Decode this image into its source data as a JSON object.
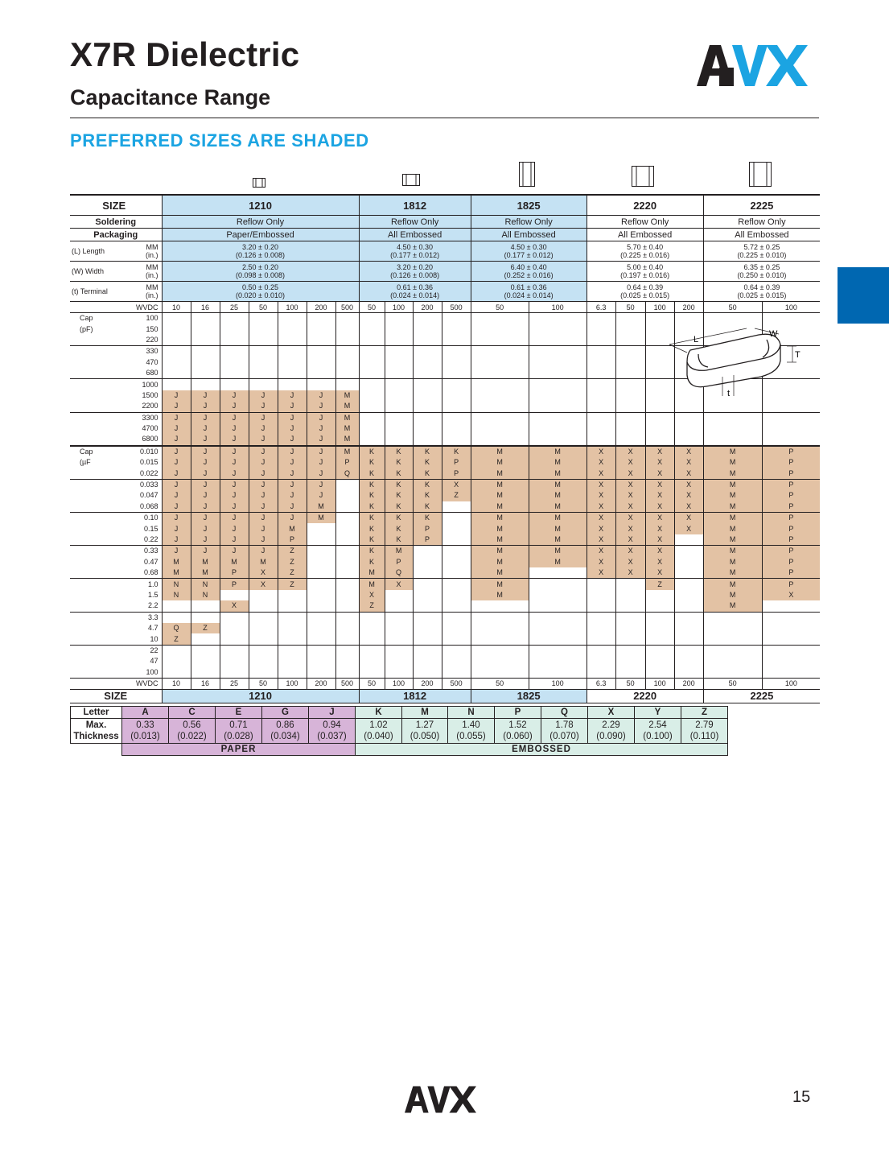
{
  "header": {
    "title": "X7R Dielectric",
    "subtitle": "Capacitance Range",
    "preferred_note": "PREFERRED SIZES ARE SHADED",
    "logo_text": "AVX",
    "accent_color": "#1ba4e2",
    "tab_color": "#0067b1"
  },
  "labels": {
    "size": "SIZE",
    "soldering": "Soldering",
    "packaging": "Packaging",
    "length": "(L)  Length",
    "width": "(W)  Width",
    "terminal": "(t)    Terminal",
    "mm": "MM",
    "in": "(in.)",
    "wvdc": "WVDC",
    "cap": "Cap",
    "pf": "(pF)",
    "uf": "(µF",
    "diag_L": "L",
    "diag_W": "W",
    "diag_T": "T",
    "diag_t": "t"
  },
  "sizes": [
    {
      "name": "1210",
      "soldering": "Reflow Only",
      "packaging": "Paper/Embossed",
      "length_mm": "3.20 ± 0.20",
      "length_in": "(0.126 ± 0.008)",
      "width_mm": "2.50 ± 0.20",
      "width_in": "(0.098 ± 0.008)",
      "term_mm": "0.50 ± 0.25",
      "term_in": "(0.020 ± 0.010)",
      "wvdc": [
        "10",
        "16",
        "25",
        "50",
        "100",
        "200",
        "500"
      ]
    },
    {
      "name": "1812",
      "soldering": "Reflow Only",
      "packaging": "All Embossed",
      "length_mm": "4.50 ± 0.30",
      "length_in": "(0.177 ± 0.012)",
      "width_mm": "3.20 ± 0.20",
      "width_in": "(0.126 ± 0.008)",
      "term_mm": "0.61 ± 0.36",
      "term_in": "(0.024 ± 0.014)",
      "wvdc": [
        "50",
        "100",
        "200",
        "500"
      ]
    },
    {
      "name": "1825",
      "soldering": "Reflow Only",
      "packaging": "All Embossed",
      "length_mm": "4.50 ± 0.30",
      "length_in": "(0.177 ± 0.012)",
      "width_mm": "6.40 ± 0.40",
      "width_in": "(0.252 ± 0.016)",
      "term_mm": "0.61 ± 0.36",
      "term_in": "(0.024 ± 0.014)",
      "wvdc": [
        "50",
        "100"
      ]
    },
    {
      "name": "2220",
      "soldering": "Reflow Only",
      "packaging": "All Embossed",
      "length_mm": "5.70 ± 0.40",
      "length_in": "(0.225 ± 0.016)",
      "width_mm": "5.00 ± 0.40",
      "width_in": "(0.197 ± 0.016)",
      "term_mm": "0.64 ± 0.39",
      "term_in": "(0.025 ± 0.015)",
      "wvdc": [
        "6.3",
        "50",
        "100",
        "200"
      ]
    },
    {
      "name": "2225",
      "soldering": "Reflow Only",
      "packaging": "All Embossed",
      "length_mm": "5.72 ± 0.25",
      "length_in": "(0.225 ± 0.010)",
      "width_mm": "6.35 ± 0.25",
      "width_in": "(0.250 ± 0.010)",
      "term_mm": "0.64 ± 0.39",
      "term_in": "(0.025 ± 0.015)",
      "wvdc": [
        "50",
        "100"
      ]
    }
  ],
  "cap_values": [
    "100",
    "150",
    "220",
    "330",
    "470",
    "680",
    "1000",
    "1500",
    "2200",
    "3300",
    "4700",
    "6800",
    "0.010",
    "0.015",
    "0.022",
    "0.033",
    "0.047",
    "0.068",
    "0.10",
    "0.15",
    "0.22",
    "0.33",
    "0.47",
    "0.68",
    "1.0",
    "1.5",
    "2.2",
    "3.3",
    "4.7",
    "10",
    "22",
    "47",
    "100"
  ],
  "cell_rows": [
    "",
    "",
    "",
    "",
    "",
    "",
    "",
    "JJJJJJM",
    "JJJJJJM",
    "JJJJJJM",
    "JJJJJJM",
    "JJJJJJM",
    "JJJJJJMKKKKMMXXXXMP",
    "JJJJJJPKKKPMMXXXXMP",
    "JJJJJJQKKKPMMXXXXMP",
    "JJJJJJ_KKKXMMXXXXMP",
    "JJJJJJ_KKKZMMXXXXMP",
    "JJJJJM_KKK_MMXXXXMP",
    "JJJJJM_KKK_MMXXXXMP",
    "JJJJM__KKP_MMXXXXMP",
    "JJJJP__KKP_MMXXX_MP",
    "JJJJZ__KM__MMXXX_MP",
    "MMMMZ__KP__MMXXX_MP",
    "MMPXZ__MQ__M_XXX_MP",
    "NNPXZ__MX__M___Z_MP",
    "NN_____X___M_____MX",
    "__X____Z_________M_",
    "___________________",
    "QZ_________________",
    "Z__________________",
    "___________________",
    "___________________",
    "___________________"
  ],
  "thickness": {
    "letter_label": "Letter",
    "max_label": "Max.",
    "thickness_label": "Thickness",
    "paper_label": "PAPER",
    "embossed_label": "EMBOSSED",
    "letters": [
      "A",
      "C",
      "E",
      "G",
      "J",
      "K",
      "M",
      "N",
      "P",
      "Q",
      "X",
      "Y",
      "Z"
    ],
    "mm": [
      "0.33",
      "0.56",
      "0.71",
      "0.86",
      "0.94",
      "1.02",
      "1.27",
      "1.40",
      "1.52",
      "1.78",
      "2.29",
      "2.54",
      "2.79"
    ],
    "inch": [
      "(0.013)",
      "(0.022)",
      "(0.028)",
      "(0.034)",
      "(0.037)",
      "(0.040)",
      "(0.050)",
      "(0.055)",
      "(0.060)",
      "(0.070)",
      "(0.090)",
      "(0.100)",
      "(0.110)"
    ]
  },
  "footer": {
    "page_number": "15",
    "logo_text": "AVX"
  }
}
